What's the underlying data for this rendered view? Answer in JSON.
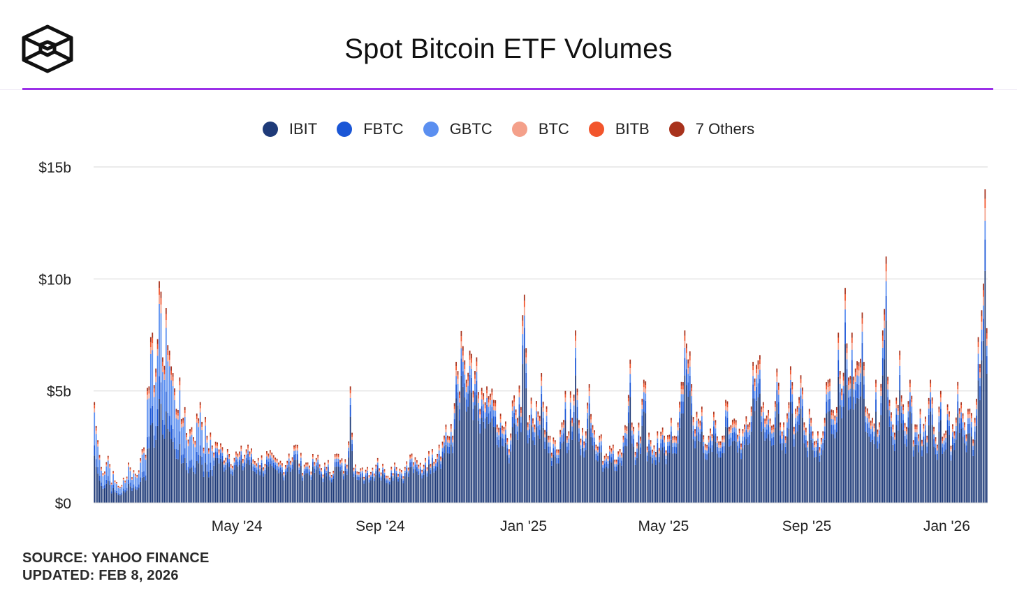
{
  "header": {
    "title": "Spot Bitcoin ETF Volumes",
    "logo_icon": "cube-outline-logo-icon"
  },
  "colors": {
    "IBIT": "#1e3a78",
    "FBTC": "#1a56d6",
    "GBTC": "#5b8ff0",
    "BTC": "#f4a08a",
    "BITB": "#f2552c",
    "Others": "#a8321c",
    "accent_rule": "#9b30e8",
    "grid": "#e4e4e4"
  },
  "legend": [
    {
      "label": "IBIT",
      "color": "#1e3a78"
    },
    {
      "label": "FBTC",
      "color": "#1a56d6"
    },
    {
      "label": "GBTC",
      "color": "#5b8ff0"
    },
    {
      "label": "BTC",
      "color": "#f4a08a"
    },
    {
      "label": "BITB",
      "color": "#f2552c"
    },
    {
      "label": "7 Others",
      "color": "#a8321c"
    }
  ],
  "footer": {
    "source": "SOURCE: YAHOO FINANCE",
    "updated": "UPDATED: FEB 8, 2026"
  },
  "chart_data": {
    "type": "bar",
    "stacked": true,
    "title": "Spot Bitcoin ETF Volumes",
    "xlabel": "",
    "ylabel": "",
    "ylim": [
      0,
      15
    ],
    "y_unit": "billions USD",
    "yticks": [
      {
        "value": 0,
        "label": "$0"
      },
      {
        "value": 5,
        "label": "$5b"
      },
      {
        "value": 10,
        "label": "$10b"
      },
      {
        "value": 15,
        "label": "$15b"
      }
    ],
    "xticks": [
      {
        "index": 84,
        "label": "May '24"
      },
      {
        "index": 168,
        "label": "Sep '24"
      },
      {
        "index": 252,
        "label": "Jan '25"
      },
      {
        "index": 334,
        "label": "May '25"
      },
      {
        "index": 418,
        "label": "Sep '25"
      },
      {
        "index": 500,
        "label": "Jan '26"
      }
    ],
    "n_bars": 524,
    "series_names": [
      "IBIT",
      "FBTC",
      "GBTC",
      "BTC",
      "BITB",
      "7 Others"
    ],
    "segment_shares_typical": {
      "IBIT": 0.74,
      "FBTC": 0.1,
      "GBTC": 0.06,
      "BTC": 0.04,
      "BITB": 0.03,
      "7 Others": 0.03
    },
    "totals_keypoints": [
      [
        0,
        4.5
      ],
      [
        2,
        2.8
      ],
      [
        4,
        1.6
      ],
      [
        8,
        2.1
      ],
      [
        12,
        1.0
      ],
      [
        16,
        0.8
      ],
      [
        20,
        1.8
      ],
      [
        24,
        1.3
      ],
      [
        28,
        2.4
      ],
      [
        32,
        5.2
      ],
      [
        34,
        7.6
      ],
      [
        36,
        6.0
      ],
      [
        38,
        9.9
      ],
      [
        40,
        6.5
      ],
      [
        42,
        8.7
      ],
      [
        44,
        6.8
      ],
      [
        46,
        5.8
      ],
      [
        48,
        4.2
      ],
      [
        50,
        5.6
      ],
      [
        52,
        3.8
      ],
      [
        56,
        3.3
      ],
      [
        62,
        4.5
      ],
      [
        66,
        3.0
      ],
      [
        72,
        2.7
      ],
      [
        78,
        2.4
      ],
      [
        84,
        2.2
      ],
      [
        90,
        2.6
      ],
      [
        96,
        2.0
      ],
      [
        102,
        2.2
      ],
      [
        108,
        1.8
      ],
      [
        114,
        2.2
      ],
      [
        118,
        2.6
      ],
      [
        124,
        1.8
      ],
      [
        130,
        2.0
      ],
      [
        136,
        1.6
      ],
      [
        142,
        2.2
      ],
      [
        148,
        1.7
      ],
      [
        150,
        5.2
      ],
      [
        154,
        1.4
      ],
      [
        160,
        1.6
      ],
      [
        166,
        2.0
      ],
      [
        170,
        1.5
      ],
      [
        176,
        1.8
      ],
      [
        182,
        1.6
      ],
      [
        186,
        2.2
      ],
      [
        190,
        1.7
      ],
      [
        194,
        2.0
      ],
      [
        198,
        2.4
      ],
      [
        202,
        2.6
      ],
      [
        206,
        3.5
      ],
      [
        210,
        3.0
      ],
      [
        212,
        6.3
      ],
      [
        216,
        7.0
      ],
      [
        218,
        5.5
      ],
      [
        220,
        6.8
      ],
      [
        222,
        5.0
      ],
      [
        224,
        6.5
      ],
      [
        226,
        4.2
      ],
      [
        230,
        5.2
      ],
      [
        234,
        4.6
      ],
      [
        236,
        3.5
      ],
      [
        240,
        3.4
      ],
      [
        244,
        3.1
      ],
      [
        246,
        4.8
      ],
      [
        248,
        3.8
      ],
      [
        252,
        9.3
      ],
      [
        254,
        3.6
      ],
      [
        256,
        4.7
      ],
      [
        258,
        3.5
      ],
      [
        262,
        5.8
      ],
      [
        266,
        3.0
      ],
      [
        270,
        2.8
      ],
      [
        274,
        3.6
      ],
      [
        276,
        5.0
      ],
      [
        278,
        3.2
      ],
      [
        282,
        7.7
      ],
      [
        284,
        3.7
      ],
      [
        288,
        3.2
      ],
      [
        290,
        5.3
      ],
      [
        294,
        2.6
      ],
      [
        296,
        3.0
      ],
      [
        300,
        2.2
      ],
      [
        304,
        2.6
      ],
      [
        308,
        2.4
      ],
      [
        310,
        3.0
      ],
      [
        314,
        6.4
      ],
      [
        316,
        3.4
      ],
      [
        318,
        2.7
      ],
      [
        322,
        5.5
      ],
      [
        326,
        2.8
      ],
      [
        330,
        3.2
      ],
      [
        334,
        3.0
      ],
      [
        338,
        3.8
      ],
      [
        340,
        3.0
      ],
      [
        344,
        5.4
      ],
      [
        346,
        7.7
      ],
      [
        350,
        5.3
      ],
      [
        352,
        3.3
      ],
      [
        356,
        4.3
      ],
      [
        360,
        3.0
      ],
      [
        364,
        3.7
      ],
      [
        368,
        3.0
      ],
      [
        370,
        4.6
      ],
      [
        372,
        3.4
      ],
      [
        376,
        3.7
      ],
      [
        380,
        3.3
      ],
      [
        384,
        3.6
      ],
      [
        386,
        6.3
      ],
      [
        390,
        6.6
      ],
      [
        392,
        4.5
      ],
      [
        394,
        3.9
      ],
      [
        398,
        3.5
      ],
      [
        400,
        6.0
      ],
      [
        404,
        3.6
      ],
      [
        406,
        4.0
      ],
      [
        408,
        6.1
      ],
      [
        410,
        3.4
      ],
      [
        414,
        5.7
      ],
      [
        416,
        3.6
      ],
      [
        420,
        3.8
      ],
      [
        424,
        3.2
      ],
      [
        428,
        3.8
      ],
      [
        430,
        5.5
      ],
      [
        434,
        3.9
      ],
      [
        436,
        7.6
      ],
      [
        438,
        5.1
      ],
      [
        440,
        9.6
      ],
      [
        442,
        5.6
      ],
      [
        444,
        7.6
      ],
      [
        446,
        6.0
      ],
      [
        450,
        8.5
      ],
      [
        452,
        4.3
      ],
      [
        454,
        4.0
      ],
      [
        456,
        3.8
      ],
      [
        458,
        5.5
      ],
      [
        460,
        3.6
      ],
      [
        462,
        7.7
      ],
      [
        464,
        11.0
      ],
      [
        466,
        4.6
      ],
      [
        468,
        3.5
      ],
      [
        470,
        4.7
      ],
      [
        472,
        6.8
      ],
      [
        474,
        4.4
      ],
      [
        476,
        3.4
      ],
      [
        478,
        5.5
      ],
      [
        480,
        2.8
      ],
      [
        482,
        3.5
      ],
      [
        484,
        4.2
      ],
      [
        488,
        3.0
      ],
      [
        490,
        5.5
      ],
      [
        492,
        3.4
      ],
      [
        494,
        2.6
      ],
      [
        496,
        5.0
      ],
      [
        498,
        3.1
      ],
      [
        500,
        4.4
      ],
      [
        504,
        3.2
      ],
      [
        506,
        5.4
      ],
      [
        510,
        3.6
      ],
      [
        512,
        4.2
      ],
      [
        516,
        3.8
      ],
      [
        518,
        7.4
      ],
      [
        520,
        8.6
      ],
      [
        522,
        14.0
      ],
      [
        523,
        7.8
      ]
    ]
  }
}
